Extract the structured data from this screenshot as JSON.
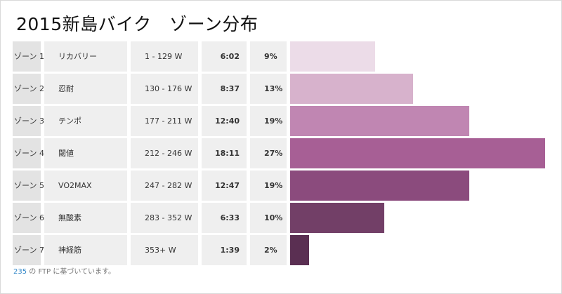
{
  "title": "2015新島バイク　ゾーン分布",
  "zones": [
    {
      "zone": "ゾーン 1",
      "name": "リカバリー",
      "range": "1 - 129 W",
      "time": "6:02",
      "pct": "9%",
      "share": 9,
      "color": "#ecdce8"
    },
    {
      "zone": "ゾーン 2",
      "name": "忍耐",
      "range": "130 - 176 W",
      "time": "8:37",
      "pct": "13%",
      "share": 13,
      "color": "#d7b2cc"
    },
    {
      "zone": "ゾーン 3",
      "name": "テンポ",
      "range": "177 - 211 W",
      "time": "12:40",
      "pct": "19%",
      "share": 19,
      "color": "#c086b2"
    },
    {
      "zone": "ゾーン 4",
      "name": "閾値",
      "range": "212 - 246 W",
      "time": "18:11",
      "pct": "27%",
      "share": 27,
      "color": "#a75f95"
    },
    {
      "zone": "ゾーン 5",
      "name": "VO2MAX",
      "range": "247 - 282 W",
      "time": "12:47",
      "pct": "19%",
      "share": 19,
      "color": "#8b4b7d"
    },
    {
      "zone": "ゾーン 6",
      "name": "無酸素",
      "range": "283 - 352 W",
      "time": "6:33",
      "pct": "10%",
      "share": 10,
      "color": "#723f67"
    },
    {
      "zone": "ゾーン 7",
      "name": "神経筋",
      "range": "353+ W",
      "time": "1:39",
      "pct": "2%",
      "share": 2,
      "color": "#5a2f52"
    }
  ],
  "footer": {
    "ftp_value": "235",
    "text": " の FTP に基づいています。"
  }
}
